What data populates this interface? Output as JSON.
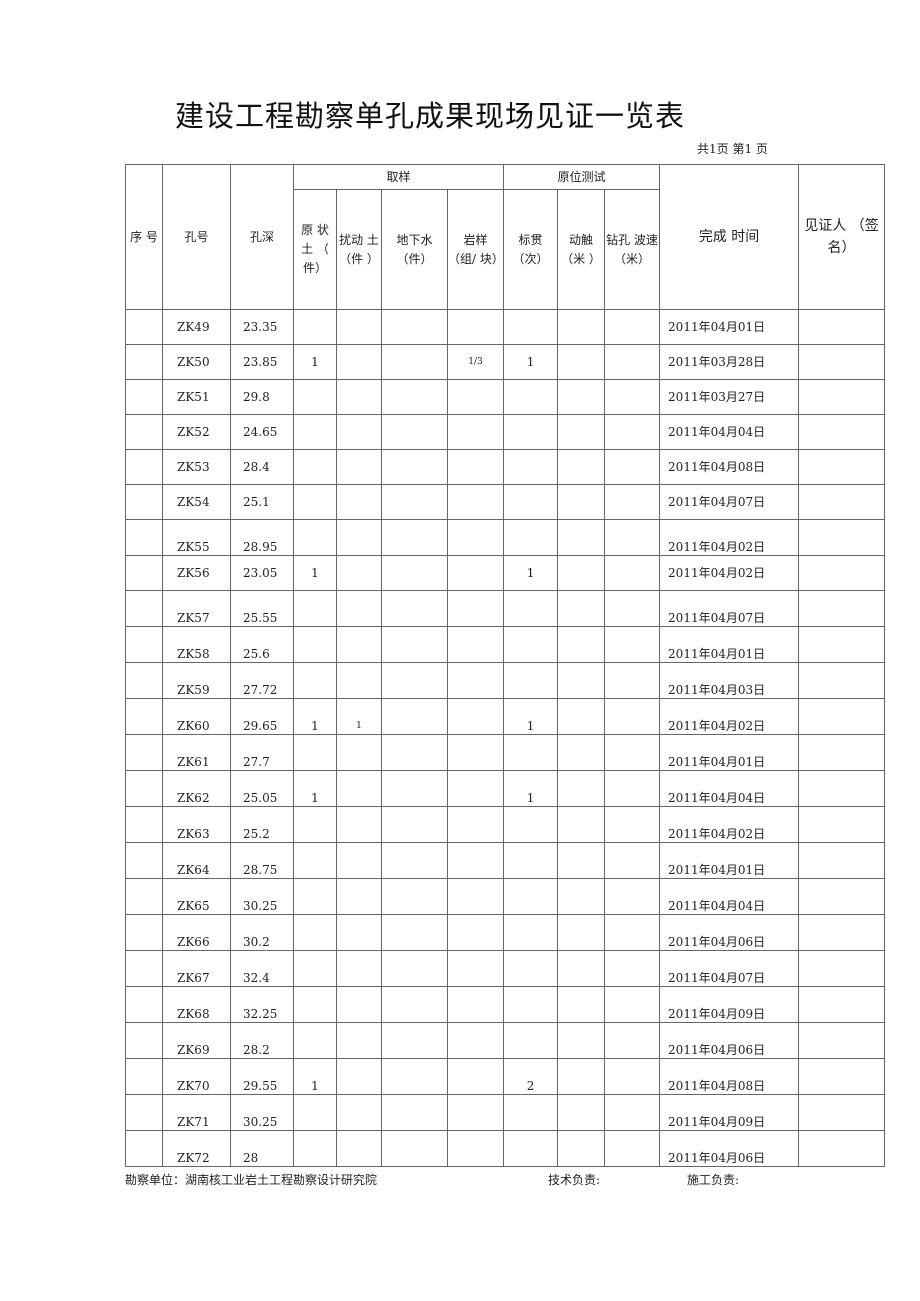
{
  "title": "建设工程勘察单孔成果现场见证一览表",
  "page_info": "共1页 第1 页",
  "headers": {
    "seq": "序 号",
    "hole": "孔号",
    "depth": "孔深",
    "sampling": "取样",
    "insitu": "原位测试",
    "undisturbed": "原 状 土 （ 件）",
    "disturbed": "扰动 土 （件 ）",
    "groundwater": "地下水 （件）",
    "rock": "岩样 （组/ 块）",
    "spt": "标贯 （次）",
    "cpt": "动触 （米 ）",
    "wave": "钻孔 波速 （米）",
    "date": "完成 时间",
    "witness": "见证人 （签名）"
  },
  "rows": [
    {
      "hole": "ZK49",
      "depth": "23.35",
      "undisturbed": "",
      "disturbed": "",
      "groundwater": "",
      "rock": "",
      "spt": "",
      "cpt": "",
      "wave": "",
      "date": "2011年04月01日"
    },
    {
      "hole": "ZK50",
      "depth": "23.85",
      "undisturbed": "1",
      "disturbed": "",
      "groundwater": "",
      "rock": "1/3",
      "spt": "1",
      "cpt": "",
      "wave": "",
      "date": "2011年03月28日"
    },
    {
      "hole": "ZK51",
      "depth": "29.8",
      "undisturbed": "",
      "disturbed": "",
      "groundwater": "",
      "rock": "",
      "spt": "",
      "cpt": "",
      "wave": "",
      "date": "2011年03月27日"
    },
    {
      "hole": "ZK52",
      "depth": "24.65",
      "undisturbed": "",
      "disturbed": "",
      "groundwater": "",
      "rock": "",
      "spt": "",
      "cpt": "",
      "wave": "",
      "date": "2011年04月04日"
    },
    {
      "hole": "ZK53",
      "depth": "28.4",
      "undisturbed": "",
      "disturbed": "",
      "groundwater": "",
      "rock": "",
      "spt": "",
      "cpt": "",
      "wave": "",
      "date": "2011年04月08日"
    },
    {
      "hole": "ZK54",
      "depth": "25.1",
      "undisturbed": "",
      "disturbed": "",
      "groundwater": "",
      "rock": "",
      "spt": "",
      "cpt": "",
      "wave": "",
      "date": "2011年04月07日"
    },
    {
      "hole": "ZK55",
      "depth": "28.95",
      "undisturbed": "",
      "disturbed": "",
      "groundwater": "",
      "rock": "",
      "spt": "",
      "cpt": "",
      "wave": "",
      "date": "2011年04月02日"
    },
    {
      "hole": "ZK56",
      "depth": "23.05",
      "undisturbed": "1",
      "disturbed": "",
      "groundwater": "",
      "rock": "",
      "spt": "1",
      "cpt": "",
      "wave": "",
      "date": "2011年04月02日"
    },
    {
      "hole": "ZK57",
      "depth": "25.55",
      "undisturbed": "",
      "disturbed": "",
      "groundwater": "",
      "rock": "",
      "spt": "",
      "cpt": "",
      "wave": "",
      "date": "2011年04月07日"
    },
    {
      "hole": "ZK58",
      "depth": "25.6",
      "undisturbed": "",
      "disturbed": "",
      "groundwater": "",
      "rock": "",
      "spt": "",
      "cpt": "",
      "wave": "",
      "date": "2011年04月01日"
    },
    {
      "hole": "ZK59",
      "depth": "27.72",
      "undisturbed": "",
      "disturbed": "",
      "groundwater": "",
      "rock": "",
      "spt": "",
      "cpt": "",
      "wave": "",
      "date": "2011年04月03日"
    },
    {
      "hole": "ZK60",
      "depth": "29.65",
      "undisturbed": "1",
      "disturbed": "1",
      "groundwater": "",
      "rock": "",
      "spt": "1",
      "cpt": "",
      "wave": "",
      "date": "2011年04月02日"
    },
    {
      "hole": "ZK61",
      "depth": "27.7",
      "undisturbed": "",
      "disturbed": "",
      "groundwater": "",
      "rock": "",
      "spt": "",
      "cpt": "",
      "wave": "",
      "date": "2011年04月01日"
    },
    {
      "hole": "ZK62",
      "depth": "25.05",
      "undisturbed": "1",
      "disturbed": "",
      "groundwater": "",
      "rock": "",
      "spt": "1",
      "cpt": "",
      "wave": "",
      "date": "2011年04月04日"
    },
    {
      "hole": "ZK63",
      "depth": "25.2",
      "undisturbed": "",
      "disturbed": "",
      "groundwater": "",
      "rock": "",
      "spt": "",
      "cpt": "",
      "wave": "",
      "date": "2011年04月02日"
    },
    {
      "hole": "ZK64",
      "depth": "28.75",
      "undisturbed": "",
      "disturbed": "",
      "groundwater": "",
      "rock": "",
      "spt": "",
      "cpt": "",
      "wave": "",
      "date": "2011年04月01日"
    },
    {
      "hole": "ZK65",
      "depth": "30.25",
      "undisturbed": "",
      "disturbed": "",
      "groundwater": "",
      "rock": "",
      "spt": "",
      "cpt": "",
      "wave": "",
      "date": "2011年04月04日"
    },
    {
      "hole": "ZK66",
      "depth": "30.2",
      "undisturbed": "",
      "disturbed": "",
      "groundwater": "",
      "rock": "",
      "spt": "",
      "cpt": "",
      "wave": "",
      "date": "2011年04月06日"
    },
    {
      "hole": "ZK67",
      "depth": "32.4",
      "undisturbed": "",
      "disturbed": "",
      "groundwater": "",
      "rock": "",
      "spt": "",
      "cpt": "",
      "wave": "",
      "date": "2011年04月07日"
    },
    {
      "hole": "ZK68",
      "depth": "32.25",
      "undisturbed": "",
      "disturbed": "",
      "groundwater": "",
      "rock": "",
      "spt": "",
      "cpt": "",
      "wave": "",
      "date": "2011年04月09日"
    },
    {
      "hole": "ZK69",
      "depth": "28.2",
      "undisturbed": "",
      "disturbed": "",
      "groundwater": "",
      "rock": "",
      "spt": "",
      "cpt": "",
      "wave": "",
      "date": "2011年04月06日"
    },
    {
      "hole": "ZK70",
      "depth": "29.55",
      "undisturbed": "1",
      "disturbed": "",
      "groundwater": "",
      "rock": "",
      "spt": "2",
      "cpt": "",
      "wave": "",
      "date": "2011年04月08日"
    },
    {
      "hole": "ZK71",
      "depth": "30.25",
      "undisturbed": "",
      "disturbed": "",
      "groundwater": "",
      "rock": "",
      "spt": "",
      "cpt": "",
      "wave": "",
      "date": "2011年04月09日"
    },
    {
      "hole": "ZK72",
      "depth": "28",
      "undisturbed": "",
      "disturbed": "",
      "groundwater": "",
      "rock": "",
      "spt": "",
      "cpt": "",
      "wave": "",
      "date": "2011年04月06日"
    }
  ],
  "footer": {
    "unit": "勘察单位：湖南核工业岩土工程勘察设计研究院",
    "tech": "技术负责:",
    "construction": "施工负责:"
  }
}
